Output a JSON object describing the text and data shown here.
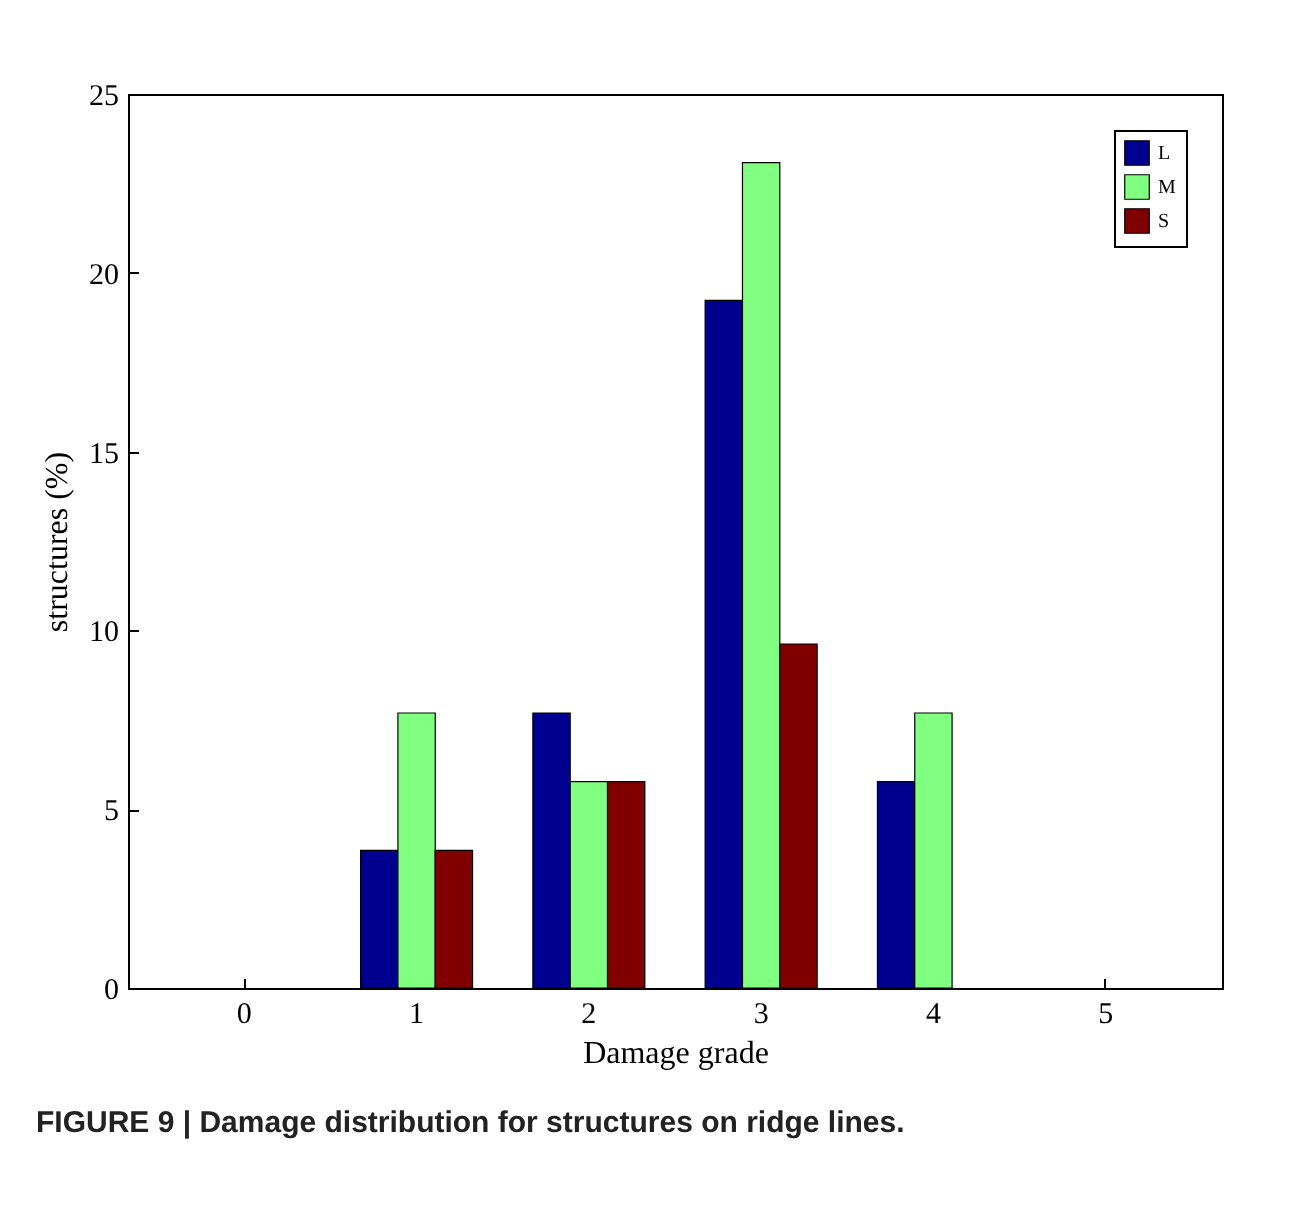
{
  "chart_data": {
    "type": "bar",
    "xlabel": "Damage grade",
    "ylabel": "structures (%)",
    "categories": [
      "0",
      "1",
      "2",
      "3",
      "4",
      "5"
    ],
    "series": [
      {
        "name": "L",
        "color": "#00008f",
        "values": [
          0,
          3.85,
          7.69,
          19.23,
          5.77,
          0
        ]
      },
      {
        "name": "M",
        "color": "#80ff80",
        "values": [
          0,
          7.69,
          5.77,
          23.08,
          7.69,
          0
        ]
      },
      {
        "name": "S",
        "color": "#800000",
        "values": [
          0,
          3.85,
          5.77,
          9.62,
          0,
          0
        ]
      }
    ],
    "ylim": [
      0,
      25
    ],
    "yticks": [
      0,
      5,
      10,
      15,
      20,
      25
    ],
    "grid": false,
    "legend": "top right",
    "annotations": [
      "FIGURE 9 | Damage distribution for structures on ridge lines."
    ]
  }
}
